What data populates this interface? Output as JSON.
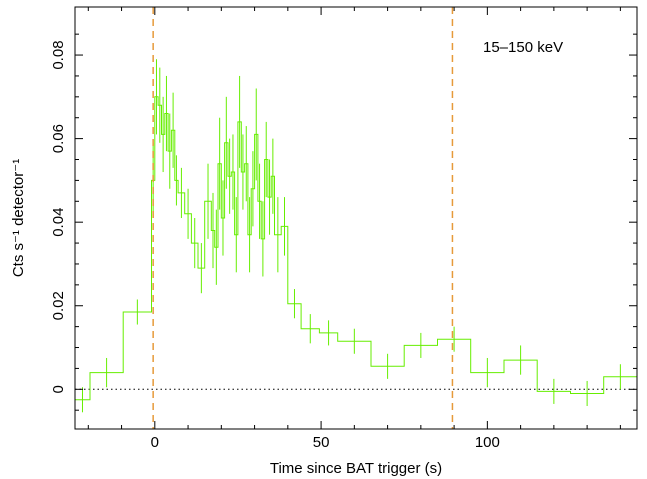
{
  "chart_data": {
    "type": "line",
    "xlabel": "Time since BAT trigger (s)",
    "ylabel": "Cts s⁻¹ detector⁻¹",
    "annotation": "15–150 keV",
    "xlim": [
      -24,
      145
    ],
    "ylim": [
      -0.0095,
      0.0915
    ],
    "xticks": [
      0,
      50,
      100
    ],
    "yticks": [
      0,
      0.02,
      0.04,
      0.06,
      0.08
    ],
    "ytick_labels": [
      "0",
      "0.02",
      "0.04",
      "0.06",
      "0.08"
    ],
    "zero_line": "dotted",
    "vlines": [
      -0.5,
      89.5
    ],
    "colors": {
      "data": "#66ee00",
      "vline": "#e69a3a",
      "axes": "#000000"
    },
    "series": [
      {
        "style": "step-with-errorbars",
        "edges": [
          -24,
          -19.5,
          -9.5,
          -1,
          0,
          1,
          2,
          3,
          4,
          5,
          6,
          7,
          9,
          11,
          13,
          15,
          17,
          18,
          19,
          20,
          21,
          22,
          23,
          24,
          25,
          26,
          27,
          28,
          29,
          30,
          31,
          32,
          33,
          34,
          35,
          36,
          38,
          40,
          44,
          49.5,
          55,
          65,
          75,
          85,
          95,
          105,
          115,
          125,
          135,
          145
        ],
        "values": [
          -0.0025,
          0.004,
          0.0185,
          0.05,
          0.07,
          0.068,
          0.061,
          0.066,
          0.057,
          0.062,
          0.05,
          0.047,
          0.042,
          0.035,
          0.029,
          0.045,
          0.038,
          0.034,
          0.054,
          0.041,
          0.059,
          0.051,
          0.052,
          0.037,
          0.064,
          0.052,
          0.054,
          0.037,
          0.048,
          0.061,
          0.045,
          0.036,
          0.055,
          0.046,
          0.051,
          0.037,
          0.039,
          0.0205,
          0.0145,
          0.0135,
          0.0115,
          0.0055,
          0.0105,
          0.012,
          0.004,
          0.007,
          -0.0005,
          -0.001,
          0.003
        ],
        "errors": [
          0.003,
          0.0035,
          0.003,
          0.009,
          0.009,
          0.009,
          0.009,
          0.009,
          0.009,
          0.009,
          0.006,
          0.006,
          0.006,
          0.006,
          0.006,
          0.009,
          0.009,
          0.009,
          0.011,
          0.009,
          0.011,
          0.009,
          0.009,
          0.009,
          0.011,
          0.009,
          0.009,
          0.009,
          0.009,
          0.011,
          0.009,
          0.009,
          0.009,
          0.009,
          0.009,
          0.009,
          0.007,
          0.0035,
          0.0035,
          0.003,
          0.003,
          0.003,
          0.003,
          0.003,
          0.0035,
          0.0035,
          0.003,
          0.003,
          0.003
        ]
      }
    ]
  }
}
